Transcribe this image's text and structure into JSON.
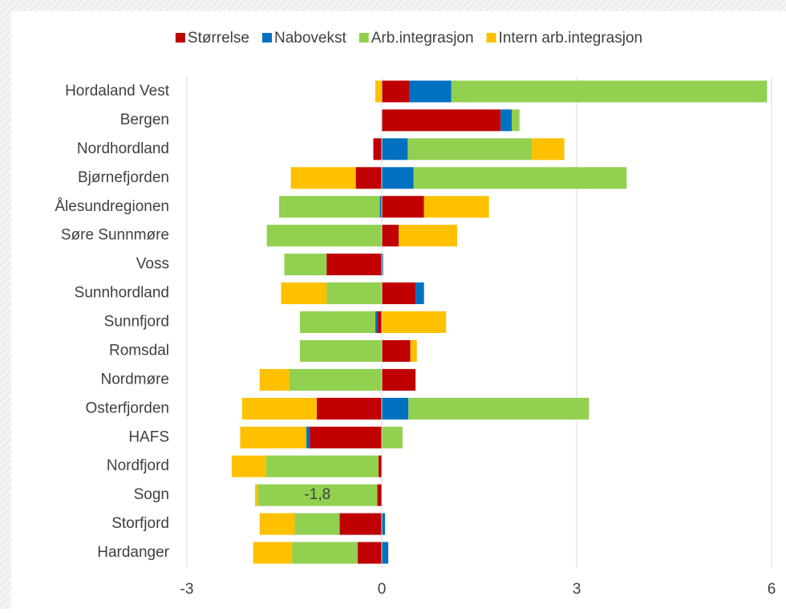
{
  "chart_data": {
    "type": "bar",
    "orientation": "horizontal",
    "stacked": true,
    "categories": [
      "Hordaland Vest",
      "Bergen",
      "Nordhordland",
      "Bjørnefjorden",
      "Ålesundregionen",
      "Søre Sunnmøre",
      "Voss",
      "Sunnhordland",
      "Sunnfjord",
      "Romsdal",
      "Nordmøre",
      "Osterfjorden",
      "HAFS",
      "Nordfjord",
      "Sogn",
      "Storfjord",
      "Hardanger"
    ],
    "series": [
      {
        "name": "Størrelse",
        "color": "#c00000",
        "values": [
          0.43,
          1.83,
          -0.13,
          -0.4,
          0.65,
          0.26,
          -0.85,
          0.52,
          -0.07,
          0.44,
          0.52,
          -1.0,
          -1.11,
          -0.05,
          -0.07,
          -0.65,
          -0.37
        ]
      },
      {
        "name": "Nabovekst",
        "color": "#0070c0",
        "values": [
          0.64,
          0.17,
          0.4,
          0.49,
          -0.03,
          0,
          0.02,
          0.13,
          -0.03,
          0,
          0,
          0.41,
          -0.05,
          0,
          0,
          0.05,
          0.1
        ]
      },
      {
        "name": "Arb.integrasjon",
        "color": "#92d050",
        "values": [
          4.86,
          0.12,
          1.91,
          3.28,
          -1.55,
          -1.77,
          -0.65,
          -0.85,
          -1.16,
          -1.26,
          -1.42,
          2.78,
          0.32,
          -1.73,
          -1.84,
          -0.69,
          -1.01
        ],
        "value_labels": [
          null,
          null,
          null,
          null,
          null,
          null,
          null,
          null,
          null,
          null,
          null,
          null,
          null,
          null,
          "-1,8",
          null,
          null
        ]
      },
      {
        "name": "Intern arb.integrasjon",
        "color": "#ffc000",
        "values": [
          -0.1,
          0,
          0.5,
          -1.0,
          1.0,
          0.9,
          0,
          -0.7,
          0.99,
          0.1,
          -0.46,
          -1.15,
          -1.02,
          -0.53,
          -0.04,
          -0.54,
          -0.6
        ]
      }
    ],
    "xlim": [
      -3,
      6
    ],
    "xticks": [
      -3,
      0,
      3,
      6
    ],
    "grid": true,
    "legend": "top"
  }
}
